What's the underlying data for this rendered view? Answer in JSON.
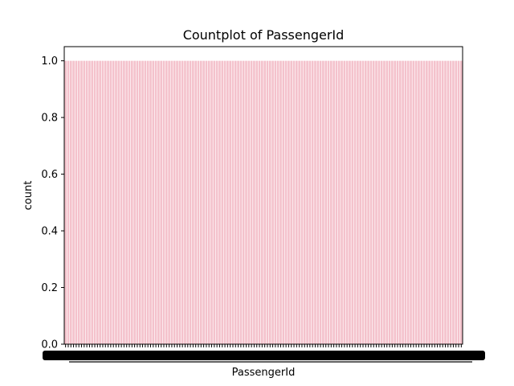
{
  "chart_data": {
    "type": "bar",
    "title": "Countplot of PassengerId",
    "xlabel": "PassengerId",
    "ylabel": "count",
    "bar_count": 150,
    "bar_value": 1.0,
    "ylim": [
      0,
      1.05
    ],
    "yticks": [
      "0.0",
      "0.2",
      "0.4",
      "0.6",
      "0.8",
      "1.0"
    ],
    "bar_color": "#f4c2cc",
    "grid": false,
    "legend": "none"
  }
}
